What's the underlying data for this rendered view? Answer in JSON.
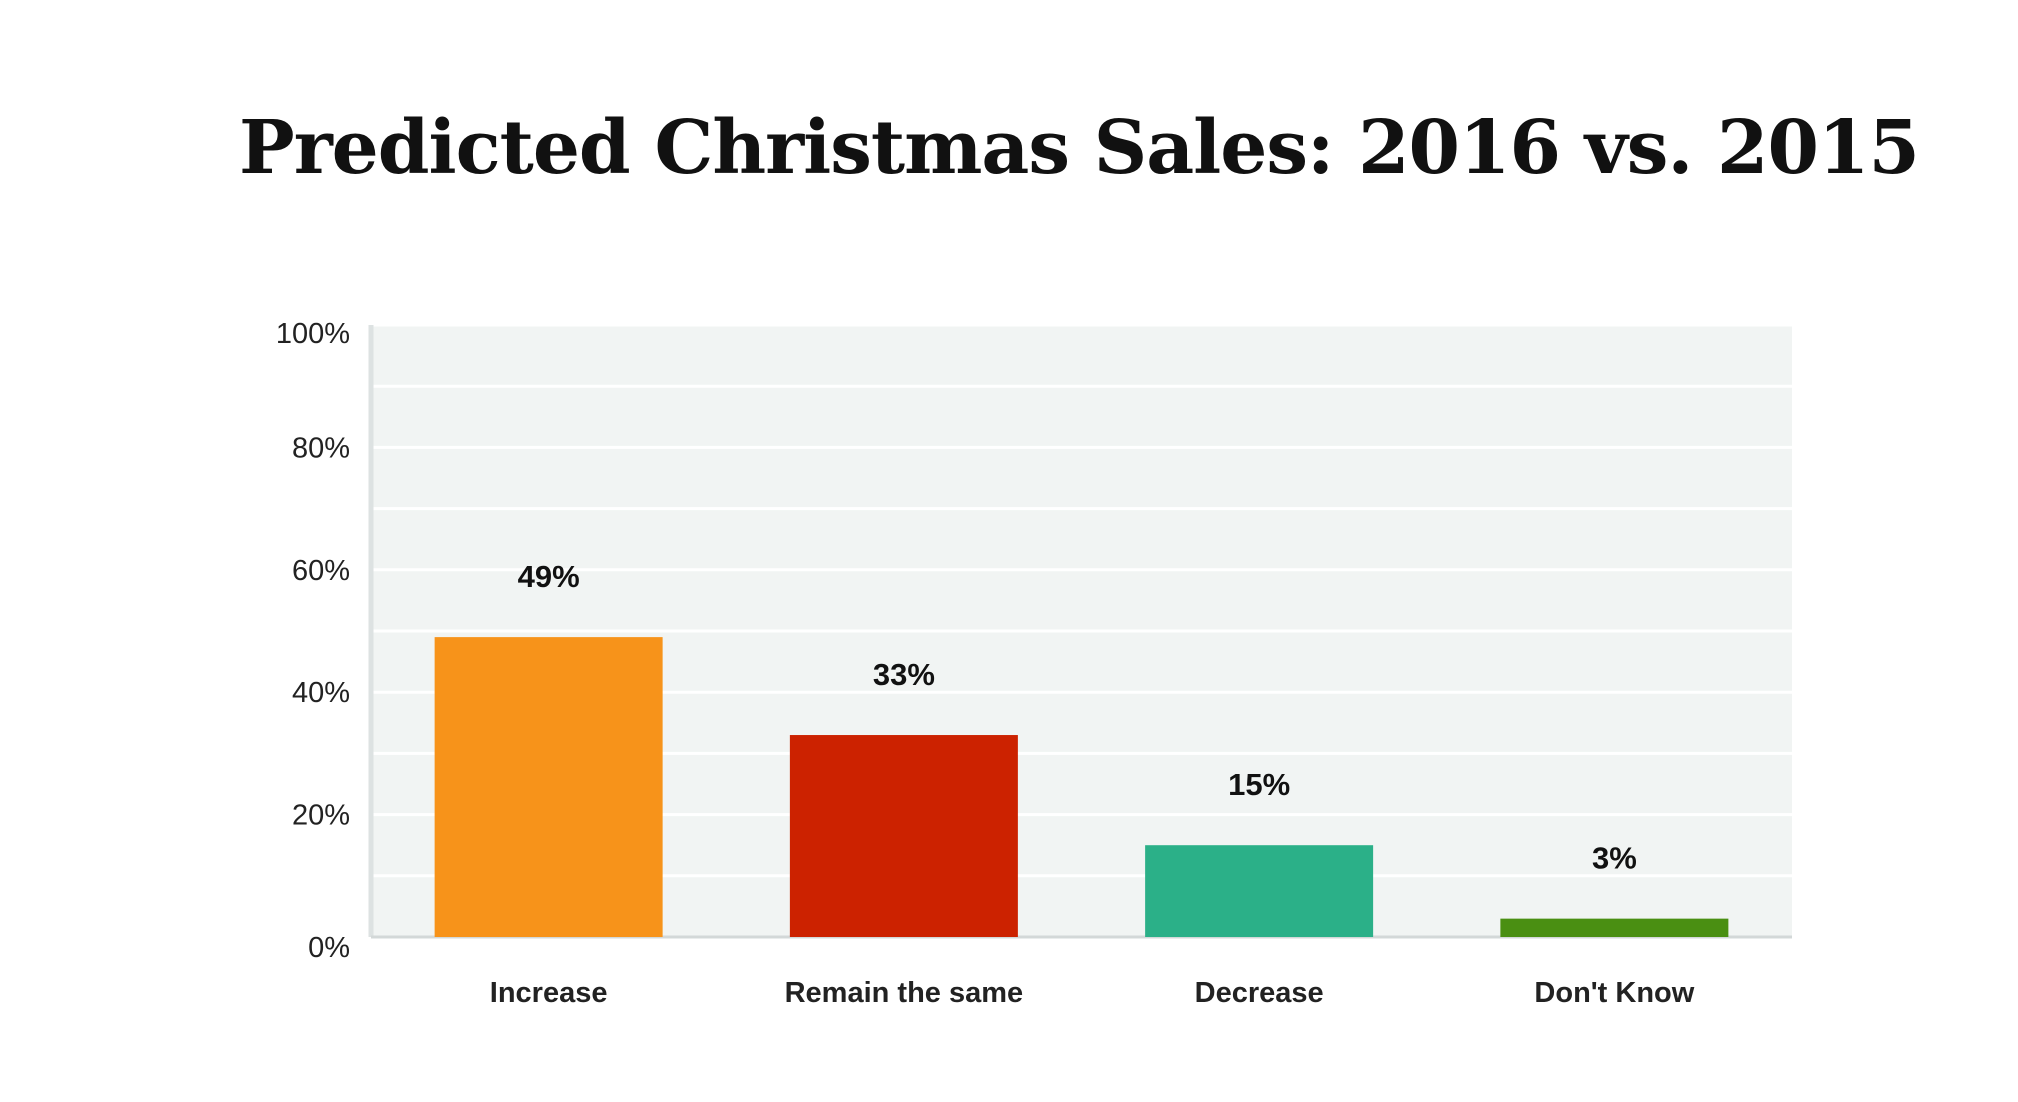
{
  "chart_data": {
    "type": "bar",
    "title": "Predicted Christmas Sales: 2016 vs. 2015",
    "categories": [
      "Increase",
      "Remain the same",
      "Decrease",
      "Don't Know"
    ],
    "values": [
      49,
      33,
      15,
      3
    ],
    "data_labels": [
      "49%",
      "33%",
      "15%",
      "3%"
    ],
    "colors": [
      "#f7931a",
      "#cc2200",
      "#2bb088",
      "#4a8f12"
    ],
    "ylim": [
      0,
      100
    ],
    "yticks": [
      0,
      20,
      40,
      60,
      80,
      100
    ],
    "ytick_labels": [
      "0%",
      "20%",
      "40%",
      "60%",
      "80%",
      "100%"
    ],
    "grid": true,
    "xlabel": "",
    "ylabel": ""
  }
}
